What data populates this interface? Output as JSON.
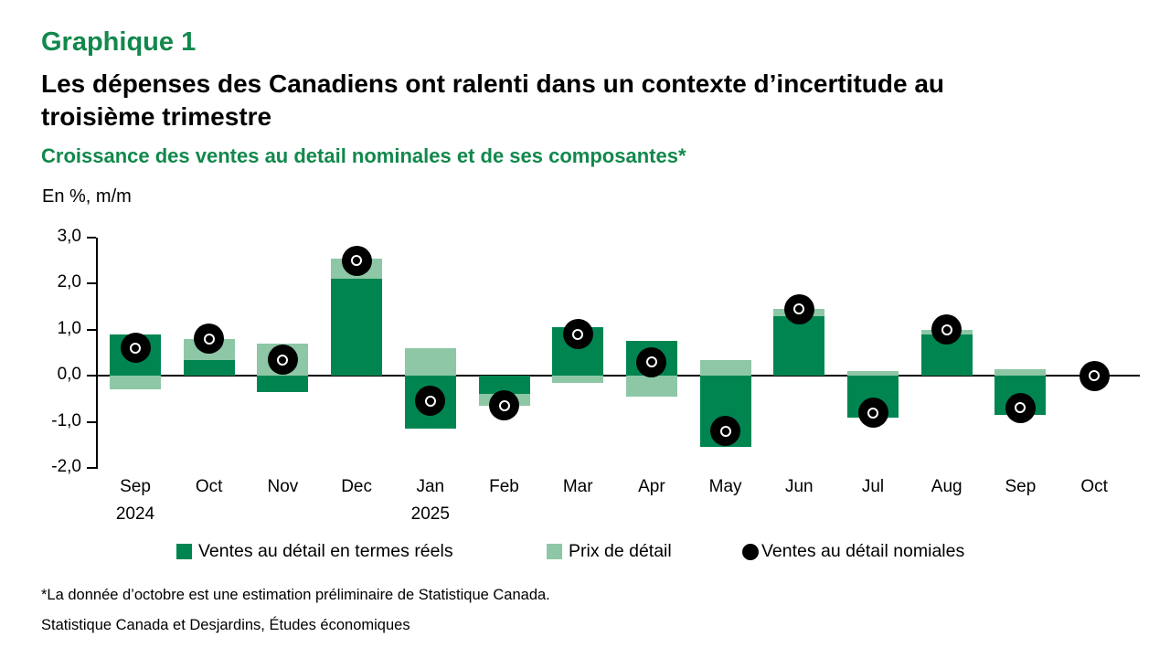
{
  "page": {
    "kicker": "Graphique 1",
    "title_line1": "Les dépenses des Canadiens ont ralenti dans un contexte d’incertitude au",
    "title_line2": "troisième trimestre",
    "subtitle": "Croissance des ventes au detail nominales et de ses composantes*",
    "unit_label": "En %, m/m",
    "footnote": "*La donnée d’octobre est une estimation préliminaire de Statistique Canada.",
    "source": "Statistique Canada et Desjardins, Études économiques"
  },
  "colors": {
    "heading_green": "#12884C",
    "real_bar_green": "#008551",
    "price_bar_green": "#8DC7A6",
    "marker_black": "#000000"
  },
  "legend": [
    {
      "label": "Ventes au détail en termes réels",
      "swatch": "square-dark-green"
    },
    {
      "label": "Prix de détail",
      "swatch": "square-light-green"
    },
    {
      "label": "Ventes au détail nomiales",
      "swatch": "circle-black"
    }
  ],
  "chart_data": {
    "type": "bar",
    "stacked": true,
    "title": "Croissance des ventes au detail nominales et de ses composantes*",
    "ylabel": "En %, m/m",
    "xlabel": "",
    "ylim": [
      -2.0,
      3.0
    ],
    "ytick_values": [
      3.0,
      2.0,
      1.0,
      0.0,
      -1.0,
      -2.0
    ],
    "ytick_labels": [
      "3,0",
      "2,0",
      "1,0",
      "0,0",
      "-1,0",
      "-2,0"
    ],
    "grid": false,
    "legend_position": "bottom",
    "categories": [
      "Sep",
      "Oct",
      "Nov",
      "Dec",
      "Jan",
      "Feb",
      "Mar",
      "Apr",
      "May",
      "Jun",
      "Jul",
      "Aug",
      "Sep",
      "Oct"
    ],
    "year_labels": [
      {
        "index": 0,
        "label": "2024"
      },
      {
        "index": 4,
        "label": "2025"
      }
    ],
    "series": [
      {
        "name": "Ventes au détail en termes réels",
        "type": "bar",
        "color": "#008551",
        "values": [
          0.9,
          0.35,
          -0.35,
          2.1,
          -1.15,
          -0.4,
          1.05,
          0.75,
          -1.55,
          1.3,
          -0.9,
          0.9,
          -0.85,
          null
        ]
      },
      {
        "name": "Prix de détail",
        "type": "bar",
        "color": "#8DC7A6",
        "values": [
          -0.3,
          0.45,
          0.7,
          0.45,
          0.6,
          -0.25,
          -0.15,
          -0.45,
          0.35,
          0.15,
          0.1,
          0.1,
          0.15,
          null
        ]
      },
      {
        "name": "Ventes au détail nomiales",
        "type": "scatter",
        "color": "#000000",
        "values": [
          0.6,
          0.8,
          0.35,
          2.5,
          -0.55,
          -0.65,
          0.9,
          0.3,
          -1.2,
          1.45,
          -0.8,
          1.0,
          -0.7,
          0.0
        ]
      }
    ]
  }
}
